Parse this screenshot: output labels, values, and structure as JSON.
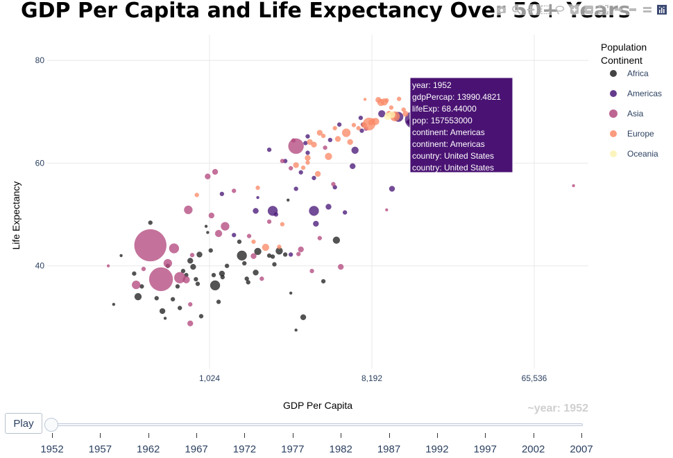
{
  "title": "GDP Per Capita and Life Expectancy Over 50+ Years",
  "colors": {
    "Africa": "#222222",
    "Americas": "#4a1a78",
    "Asia": "#b34a7f",
    "Europe": "#fa8a68",
    "Oceania": "#fcf2b4",
    "grid": "#e8e8e8",
    "hover_bg": "#4a1373"
  },
  "modebar": [
    "camera-icon",
    "zoom-icon",
    "pan-icon",
    "box-select-icon",
    "lasso-icon",
    "zoom-in-icon",
    "zoom-out-icon",
    "autoscale-icon",
    "reset-axes-icon",
    "spike-lines-icon",
    "hover-closest-icon",
    "hover-compare-icon",
    "plotly-logo-icon"
  ],
  "chart_data": {
    "type": "scatter",
    "subtype": "bubble",
    "title": "GDP Per Capita and Life Expectancy Over 50+ Years",
    "xlabel": "GDP Per Capita",
    "ylabel": "Life Expectancy",
    "x_scale": "log2",
    "xlim": [
      128,
      131072
    ],
    "ylim": [
      20,
      85
    ],
    "x_ticks": [
      1024,
      8192,
      65536
    ],
    "x_tick_labels": [
      "1,024",
      "8,192",
      "65,536"
    ],
    "y_ticks": [
      40,
      60,
      80
    ],
    "y_tick_labels": [
      "40",
      "60",
      "80"
    ],
    "grid": true,
    "legend": {
      "title_line1": "Population",
      "title_line2": "Continent",
      "placement": "top-right",
      "entries": [
        "Africa",
        "Americas",
        "Asia",
        "Europe",
        "Oceania"
      ]
    },
    "series": [
      {
        "name": "Africa",
        "points": [
          [
            300,
            32.5,
            2
          ],
          [
            330,
            42,
            2
          ],
          [
            390,
            38.5,
            3
          ],
          [
            410,
            34,
            5
          ],
          [
            430,
            36,
            3
          ],
          [
            480,
            48.4,
            3
          ],
          [
            520,
            33.7,
            3
          ],
          [
            560,
            31.2,
            4
          ],
          [
            580,
            29.8,
            2
          ],
          [
            600,
            40,
            3
          ],
          [
            640,
            33.5,
            3
          ],
          [
            680,
            36,
            3
          ],
          [
            700,
            31.8,
            3
          ],
          [
            730,
            39,
            3
          ],
          [
            760,
            38.2,
            3
          ],
          [
            800,
            41,
            4
          ],
          [
            830,
            39.8,
            4
          ],
          [
            860,
            37.4,
            3
          ],
          [
            880,
            36.5,
            3
          ],
          [
            900,
            42.2,
            4
          ],
          [
            920,
            30.2,
            3
          ],
          [
            980,
            47.7,
            2
          ],
          [
            1000,
            46.5,
            2
          ],
          [
            1040,
            43,
            3
          ],
          [
            1080,
            38.2,
            3
          ],
          [
            1100,
            36.2,
            7
          ],
          [
            1150,
            33,
            3
          ],
          [
            1200,
            38.5,
            4
          ],
          [
            1210,
            37.8,
            3
          ],
          [
            1280,
            40,
            3
          ],
          [
            1500,
            44.7,
            3
          ],
          [
            1550,
            42,
            7
          ],
          [
            1600,
            40.5,
            3
          ],
          [
            1650,
            37.5,
            3
          ],
          [
            1680,
            36.8,
            3
          ],
          [
            1850,
            38.7,
            4
          ],
          [
            1900,
            42.8,
            5
          ],
          [
            2200,
            42,
            3
          ],
          [
            2300,
            41.8,
            3
          ],
          [
            2350,
            40.3,
            3
          ],
          [
            2500,
            42.9,
            5
          ],
          [
            2700,
            42.2,
            3
          ],
          [
            2800,
            52.8,
            2
          ],
          [
            2900,
            34.7,
            2
          ],
          [
            3400,
            30,
            4
          ],
          [
            4400,
            37,
            3
          ],
          [
            5200,
            45,
            5
          ],
          [
            3100,
            27.5,
            2
          ]
        ]
      },
      {
        "name": "Americas",
        "points": [
          [
            1400,
            46,
            3
          ],
          [
            1850,
            50.7,
            4
          ],
          [
            2300,
            50.7,
            7
          ],
          [
            2400,
            50,
            3
          ],
          [
            2200,
            62.6,
            3
          ],
          [
            2900,
            42.2,
            3
          ],
          [
            3100,
            55,
            3
          ],
          [
            3300,
            58.2,
            3
          ],
          [
            3500,
            63.9,
            3
          ],
          [
            3600,
            62,
            3
          ],
          [
            3900,
            50.7,
            7
          ],
          [
            3900,
            57.1,
            3
          ],
          [
            4000,
            48.2,
            4
          ],
          [
            4700,
            51.5,
            4
          ],
          [
            5100,
            55.3,
            3
          ],
          [
            5800,
            50.4,
            3
          ],
          [
            6400,
            59.4,
            4
          ],
          [
            6600,
            62.5,
            5
          ],
          [
            7100,
            68.8,
            3
          ],
          [
            7200,
            66.3,
            3
          ],
          [
            10600,
            55,
            4
          ],
          [
            13990.4821,
            68.44,
            12.4
          ],
          [
            11500,
            69,
            7
          ],
          [
            9300,
            69.6,
            5
          ],
          [
            7300,
            67.5,
            3
          ],
          [
            3600,
            65.2,
            3
          ],
          [
            4800,
            64.5,
            3
          ],
          [
            5400,
            67.5,
            3
          ],
          [
            1200,
            54,
            3
          ],
          [
            1900,
            53.3,
            2
          ],
          [
            2700,
            60.4,
            3
          ]
        ]
      },
      {
        "name": "Asia",
        "points": [
          [
            280,
            40,
            2
          ],
          [
            400,
            36.3,
            6
          ],
          [
            440,
            39.4,
            3
          ],
          [
            480,
            44,
            23
          ],
          [
            550,
            37.4,
            17
          ],
          [
            600,
            40.5,
            6
          ],
          [
            650,
            43.4,
            7
          ],
          [
            700,
            37.7,
            8
          ],
          [
            760,
            37.3,
            5
          ],
          [
            780,
            50.9,
            6
          ],
          [
            800,
            32.5,
            3
          ],
          [
            800,
            28.8,
            4
          ],
          [
            820,
            42.1,
            3
          ],
          [
            1000,
            57.4,
            4
          ],
          [
            1050,
            49.8,
            4
          ],
          [
            1100,
            58.3,
            4
          ],
          [
            1150,
            46.3,
            5
          ],
          [
            1250,
            47.7,
            6
          ],
          [
            1700,
            45.8,
            3
          ],
          [
            1800,
            41.9,
            4
          ],
          [
            2200,
            48.6,
            3
          ],
          [
            2600,
            60.4,
            3
          ],
          [
            2900,
            59,
            3
          ],
          [
            3000,
            64.4,
            3
          ],
          [
            3100,
            63.3,
            11
          ],
          [
            3300,
            43.2,
            4
          ],
          [
            4200,
            45.4,
            3
          ],
          [
            4500,
            63,
            3
          ],
          [
            5000,
            55.9,
            3
          ],
          [
            5500,
            39.8,
            4
          ],
          [
            7600,
            66.7,
            3
          ],
          [
            9900,
            50.9,
            2
          ],
          [
            108382,
            55.6,
            2
          ],
          [
            1400,
            54.6,
            3
          ],
          [
            2000,
            37.5,
            3
          ],
          [
            3200,
            42.3,
            3
          ],
          [
            3800,
            39,
            3
          ]
        ]
      },
      {
        "name": "Europe",
        "points": [
          [
            1900,
            55.2,
            3
          ],
          [
            2100,
            43.6,
            5
          ],
          [
            2500,
            43.7,
            3
          ],
          [
            2600,
            48.1,
            3
          ],
          [
            3100,
            59.6,
            4
          ],
          [
            3400,
            59.1,
            3
          ],
          [
            3600,
            61,
            4
          ],
          [
            3700,
            64.1,
            4
          ],
          [
            3900,
            63.6,
            4
          ],
          [
            3600,
            60.1,
            3
          ],
          [
            4100,
            57.9,
            4
          ],
          [
            4200,
            65.9,
            4
          ],
          [
            4400,
            65.3,
            3
          ],
          [
            4700,
            61.3,
            5
          ],
          [
            5100,
            66.8,
            3
          ],
          [
            5300,
            64.7,
            4
          ],
          [
            5900,
            65.9,
            6
          ],
          [
            6200,
            64.1,
            4
          ],
          [
            6500,
            67.4,
            3
          ],
          [
            6900,
            66.8,
            3
          ],
          [
            7400,
            67.4,
            4
          ],
          [
            7900,
            67.6,
            9
          ],
          [
            8100,
            67.9,
            4
          ],
          [
            8300,
            68.3,
            3
          ],
          [
            8900,
            72.3,
            4
          ],
          [
            9200,
            71.8,
            5
          ],
          [
            9900,
            72.2,
            3
          ],
          [
            10500,
            70.8,
            3
          ],
          [
            10800,
            69.2,
            5
          ],
          [
            11000,
            69.1,
            7
          ],
          [
            11600,
            72.5,
            3
          ],
          [
            12300,
            70.4,
            3
          ],
          [
            7500,
            72.4,
            2
          ],
          [
            8600,
            68.1,
            5
          ],
          [
            9600,
            71.9,
            5
          ],
          [
            10200,
            69.6,
            4
          ],
          [
            12600,
            69.6,
            4
          ],
          [
            870,
            53.8,
            3
          ],
          [
            1800,
            44.7,
            3
          ]
        ]
      },
      {
        "name": "Oceania",
        "points": [
          [
            10040,
            69.1,
            5
          ],
          [
            10560,
            69.4,
            5
          ]
        ]
      }
    ],
    "hover": {
      "year": "year: 1952",
      "gdp": "gdpPercap:  13990.4821",
      "life": "lifeExp: 68.44000",
      "pop": "pop:  157553000",
      "continent1": "continent: Americas",
      "continent2": "continent: Americas",
      "country1": "country: United States",
      "country2": "country: United States"
    }
  },
  "slider": {
    "play_label": "Play",
    "current_label": "~year: 1952",
    "years": [
      "1952",
      "1957",
      "1962",
      "1967",
      "1972",
      "1977",
      "1982",
      "1987",
      "1992",
      "1997",
      "2002",
      "2007"
    ],
    "position": 0
  }
}
